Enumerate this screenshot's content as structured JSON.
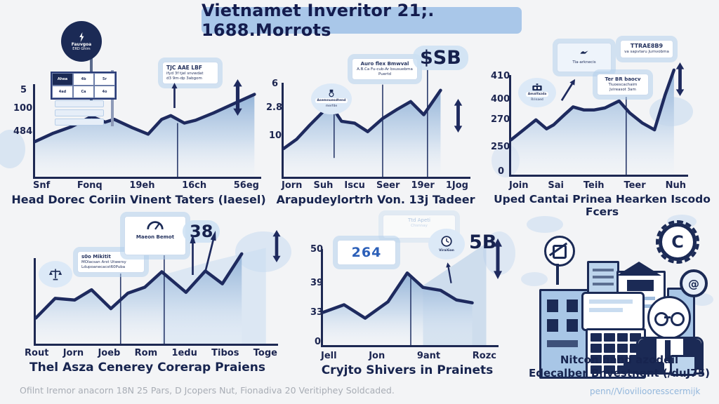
{
  "title": "Vietnamet Inveritor 21;. 1688.Morrots",
  "colors": {
    "accent_navy": "#1e2a5e",
    "title_pill": "#a9c7e9",
    "area_blue": "#8fb0d6",
    "halo_blue": "#cde0f3"
  },
  "chart_data": [
    {
      "type": "area",
      "caption": "Head Dorec Coriin Vinent Taters (Iaesel)",
      "categories": [
        "Snf",
        "Fonq",
        "19eh",
        "16ch",
        "56eg"
      ],
      "yticks": [
        "5",
        "100",
        "484"
      ],
      "points": [
        [
          0,
          62
        ],
        [
          8,
          53
        ],
        [
          16,
          46
        ],
        [
          25,
          35
        ],
        [
          31,
          41
        ],
        [
          35,
          38
        ],
        [
          43,
          47
        ],
        [
          50,
          54
        ],
        [
          56,
          38
        ],
        [
          60,
          34
        ],
        [
          66,
          42
        ],
        [
          71,
          39
        ],
        [
          79,
          31
        ],
        [
          88,
          21
        ],
        [
          97,
          11
        ]
      ],
      "annotations": {
        "badge_circle": {
          "line1": "Fauvgoa",
          "line2": "ERD Ghim"
        },
        "table_cells": [
          "Ahea",
          "4b",
          "5r",
          "4ad",
          "Ca",
          "4o"
        ],
        "note_box": {
          "line1": "TJC AAE LBF",
          "line2": "ifyd 3f tjel snvwdat",
          "line3": "d3 9m-dp 3abgom"
        }
      }
    },
    {
      "type": "area",
      "caption": "Arapudeylortrh Von. 13j Tadeer",
      "categories": [
        "Jorn",
        "Suh",
        "Iscu",
        "Seer",
        "19er",
        "1Jog"
      ],
      "yticks": [
        "6",
        "2.8",
        "10"
      ],
      "points": [
        [
          0,
          70
        ],
        [
          7,
          60
        ],
        [
          14,
          45
        ],
        [
          21,
          31
        ],
        [
          26,
          26
        ],
        [
          31,
          41
        ],
        [
          38,
          43
        ],
        [
          45,
          52
        ],
        [
          53,
          38
        ],
        [
          61,
          28
        ],
        [
          68,
          20
        ],
        [
          75,
          34
        ],
        [
          84,
          8
        ]
      ],
      "annotations": {
        "bubble": {
          "line1": "Asemnuesdtend",
          "line2": "merfde"
        },
        "info_box": {
          "line1": "Auro flex Bmwval",
          "line2": "A.B.Ca Fu-cub-Ar bsusuebma",
          "line3": "Puertd"
        },
        "big_label": "$SB"
      }
    },
    {
      "type": "area",
      "caption": "Uped Cantai Prinea Hearken Iscodo Fcers",
      "categories": [
        "Join",
        "Sai",
        "Teih",
        "Teer",
        "Nuh"
      ],
      "yticks": [
        "410",
        "400",
        "270",
        "250",
        "0"
      ],
      "points": [
        [
          0,
          65
        ],
        [
          7,
          55
        ],
        [
          14,
          45
        ],
        [
          20,
          54
        ],
        [
          24,
          50
        ],
        [
          30,
          40
        ],
        [
          35,
          32
        ],
        [
          41,
          35
        ],
        [
          47,
          35
        ],
        [
          53,
          33
        ],
        [
          61,
          26
        ],
        [
          67,
          38
        ],
        [
          74,
          48
        ],
        [
          81,
          55
        ],
        [
          87,
          20
        ],
        [
          92,
          -5
        ]
      ],
      "annotations": {
        "folder_box": {
          "line1": "Tia-arknecis"
        },
        "top_label": {
          "line1": "TTRAE8B9",
          "line2": "va sapvtaru Jumvobma"
        },
        "bubble": {
          "line1": "Amalfazda",
          "line2": "Rrinaed"
        },
        "mid_box": {
          "line1": "Ter BR baocv",
          "line2": "Tiuoescachaim",
          "line3": "Jvireasot 3am"
        }
      }
    },
    {
      "type": "area",
      "caption": "Thel Asza Cenerey Corerap Praiens",
      "categories": [
        "Rout",
        "Jorn",
        "Joeb",
        "Rom",
        "1edu",
        "Tibos",
        "Toge"
      ],
      "yticks": [],
      "points": [
        [
          0,
          70
        ],
        [
          8,
          47
        ],
        [
          16,
          49
        ],
        [
          23,
          37
        ],
        [
          31,
          59
        ],
        [
          38,
          41
        ],
        [
          45,
          34
        ],
        [
          52,
          16
        ],
        [
          62,
          40
        ],
        [
          70,
          15
        ],
        [
          77,
          30
        ],
        [
          85,
          -5
        ]
      ],
      "annotations": {
        "info_box": {
          "line1": "s0o Mikitit",
          "line2": "MOlacsan Arst Utwersy",
          "line3": "Ldupoanecacst60Puba"
        },
        "gauge_box": {
          "line1": "Maeon Bemot"
        },
        "big_label": "38"
      }
    },
    {
      "type": "area",
      "caption": "Cryjto Shivers in Prainets",
      "categories": [
        "Jell",
        "Jon",
        "9ant",
        "Rozc"
      ],
      "yticks": [
        "50",
        "39",
        "33",
        "0"
      ],
      "points": [
        [
          0,
          66
        ],
        [
          12,
          58
        ],
        [
          24,
          72
        ],
        [
          37,
          55
        ],
        [
          48,
          25
        ],
        [
          57,
          40
        ],
        [
          67,
          43
        ],
        [
          76,
          53
        ],
        [
          85,
          56
        ]
      ],
      "annotations": {
        "faint_box": {
          "line1": "Ttd Apeti",
          "line2": "Chsnnay"
        },
        "badge": "264",
        "clock_bubble": {
          "line1": "ViraiGan"
        },
        "big_label": "5B"
      }
    }
  ],
  "infographic_panel": {
    "caption_line1": "Nitcon hand azoddil",
    "caption_line2": "Edecalber Bnvestnent (/duJ75)",
    "gear_letter": "C",
    "coin_glyph": "@"
  },
  "footer": {
    "left": "Ofilnt Iremor anacorn 18N 25 Pars, D Jcopers Nut, Fionadiva 20 Veritiphey Soldcaded.",
    "right": "penn//Vioviliooresscermijk"
  }
}
